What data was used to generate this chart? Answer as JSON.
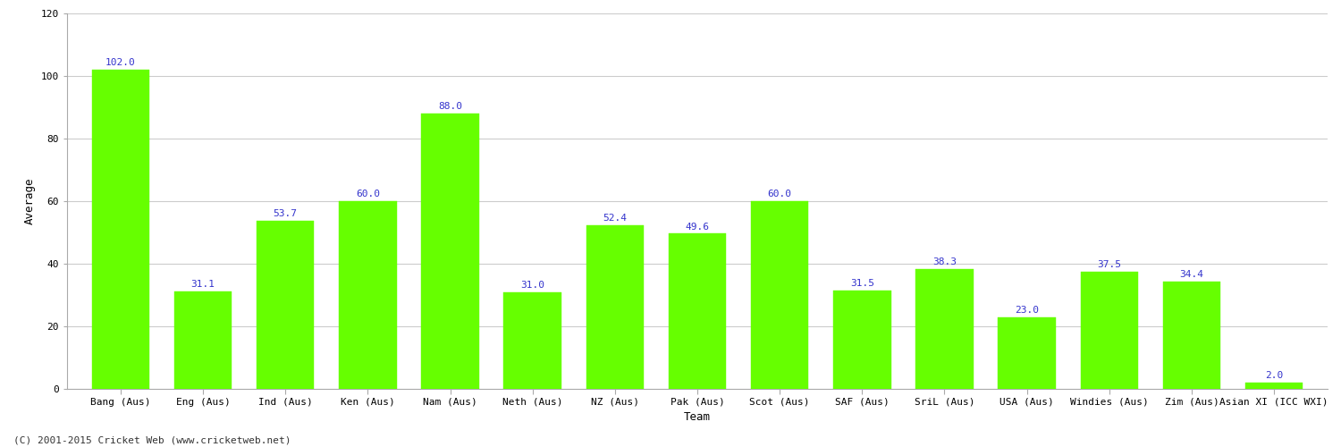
{
  "title": "",
  "xlabel": "Team",
  "ylabel": "Average",
  "categories": [
    "Bang (Aus)",
    "Eng (Aus)",
    "Ind (Aus)",
    "Ken (Aus)",
    "Nam (Aus)",
    "Neth (Aus)",
    "NZ (Aus)",
    "Pak (Aus)",
    "Scot (Aus)",
    "SAF (Aus)",
    "SriL (Aus)",
    "USA (Aus)",
    "Windies (Aus)",
    "Zim (Aus)",
    "Asian XI (ICC WXI)"
  ],
  "values": [
    102.0,
    31.1,
    53.7,
    60.0,
    88.0,
    31.0,
    52.4,
    49.6,
    60.0,
    31.5,
    38.3,
    23.0,
    37.5,
    34.4,
    2.0
  ],
  "bar_color": "#66ff00",
  "label_color": "#3333cc",
  "ylim": [
    0,
    120
  ],
  "yticks": [
    0,
    20,
    40,
    60,
    80,
    100,
    120
  ],
  "grid_color": "#cccccc",
  "background_color": "#ffffff",
  "axis_label_fontsize": 9,
  "tick_fontsize": 8,
  "value_label_fontsize": 8,
  "footer_text": "(C) 2001-2015 Cricket Web (www.cricketweb.net)"
}
